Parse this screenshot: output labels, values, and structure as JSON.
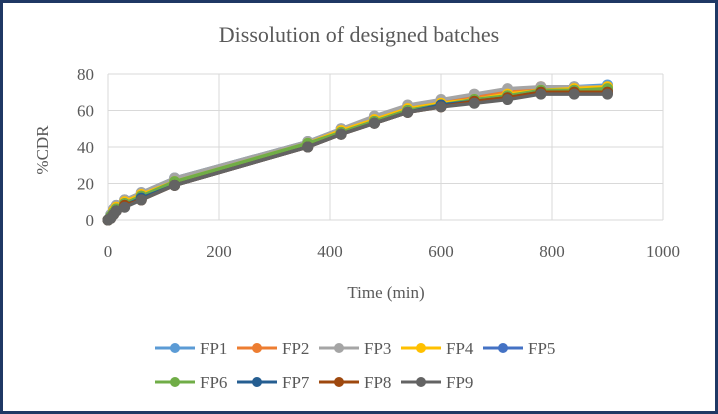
{
  "chart_data": {
    "type": "line",
    "title": "Dissolution of designed batches",
    "xlabel": "Time (min)",
    "ylabel": "%CDR",
    "xlim": [
      0,
      1000
    ],
    "ylim": [
      0,
      80
    ],
    "xticks": [
      0,
      200,
      400,
      600,
      800,
      1000
    ],
    "yticks": [
      0,
      20,
      40,
      60,
      80
    ],
    "grid": true,
    "legend_position": "bottom",
    "x": [
      0,
      5,
      10,
      15,
      30,
      60,
      120,
      360,
      420,
      480,
      540,
      600,
      660,
      720,
      780,
      840,
      900
    ],
    "series": [
      {
        "name": "FP1",
        "color": "#5b9bd5",
        "values": [
          0,
          3,
          6,
          8,
          11,
          15,
          23,
          43,
          50,
          56,
          62,
          65,
          68,
          71,
          72,
          73,
          74
        ]
      },
      {
        "name": "FP2",
        "color": "#ed7d31",
        "values": [
          0,
          2,
          5,
          7,
          10,
          14,
          22,
          42,
          49,
          55,
          61,
          64,
          67,
          70,
          73,
          72,
          72
        ]
      },
      {
        "name": "FP3",
        "color": "#a5a5a5",
        "values": [
          0,
          3,
          6,
          8,
          11,
          15,
          23,
          43,
          50,
          57,
          63,
          66,
          69,
          72,
          73,
          73,
          73
        ]
      },
      {
        "name": "FP4",
        "color": "#ffc000",
        "values": [
          0,
          2,
          5,
          7,
          10,
          14,
          21,
          42,
          49,
          55,
          61,
          64,
          66,
          69,
          71,
          72,
          73
        ]
      },
      {
        "name": "FP5",
        "color": "#4472c4",
        "values": [
          0,
          2,
          4,
          6,
          9,
          13,
          20,
          41,
          48,
          54,
          60,
          63,
          65,
          68,
          70,
          71,
          71
        ]
      },
      {
        "name": "FP6",
        "color": "#70ad47",
        "values": [
          0,
          2,
          4,
          6,
          9,
          13,
          21,
          42,
          48,
          54,
          60,
          63,
          66,
          68,
          71,
          71,
          72
        ]
      },
      {
        "name": "FP7",
        "color": "#255e91",
        "values": [
          0,
          1,
          3,
          5,
          8,
          12,
          19,
          40,
          47,
          53,
          59,
          63,
          65,
          67,
          70,
          70,
          70
        ]
      },
      {
        "name": "FP8",
        "color": "#9e480e",
        "values": [
          0,
          1,
          3,
          5,
          8,
          11,
          19,
          40,
          47,
          53,
          59,
          62,
          65,
          67,
          70,
          70,
          70
        ]
      },
      {
        "name": "FP9",
        "color": "#636363",
        "values": [
          0,
          1,
          3,
          5,
          7,
          11,
          19,
          40,
          47,
          53,
          59,
          62,
          64,
          66,
          69,
          69,
          69
        ]
      }
    ]
  }
}
